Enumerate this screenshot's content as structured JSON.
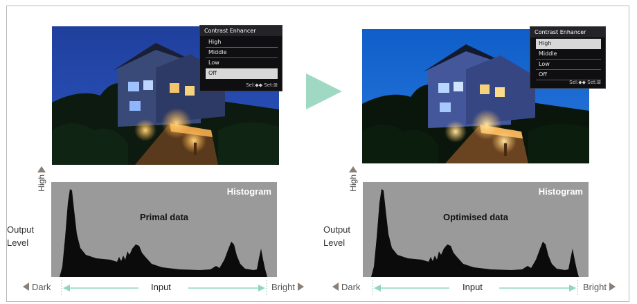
{
  "colors": {
    "frame_border": "#b9b9b9",
    "histogram_bg": "#9a9a9a",
    "histogram_fill": "#0b0b0b",
    "axis_arrow": "#8fd6c0",
    "marker_triangle": "#8a7f76",
    "big_arrow": "#9fd9c4",
    "osd_bg": "#0f0f12"
  },
  "panels": [
    {
      "osd": {
        "title": "Contrast Enhancer",
        "items": [
          "High",
          "Middle",
          "Low",
          "Off"
        ],
        "selected": "Off",
        "footer": "Sel:◆◆ Set:⊞"
      },
      "histogram_title": "Histogram",
      "histogram_label": "Primal data",
      "high_label": "High",
      "output_label_1": "Output",
      "output_label_2": "Level",
      "dark_label": "Dark",
      "input_label": "Input",
      "bright_label": "Bright"
    },
    {
      "osd": {
        "title": "Contrast Enhancer",
        "items": [
          "High",
          "Middle",
          "Low",
          "Off"
        ],
        "selected": "High",
        "footer": "Sel:◆◆ Set:⊞"
      },
      "histogram_title": "Histogram",
      "histogram_label": "Optimised data",
      "high_label": "High",
      "output_label_1": "Output",
      "output_label_2": "Level",
      "dark_label": "Dark",
      "input_label": "Input",
      "bright_label": "Bright"
    }
  ]
}
